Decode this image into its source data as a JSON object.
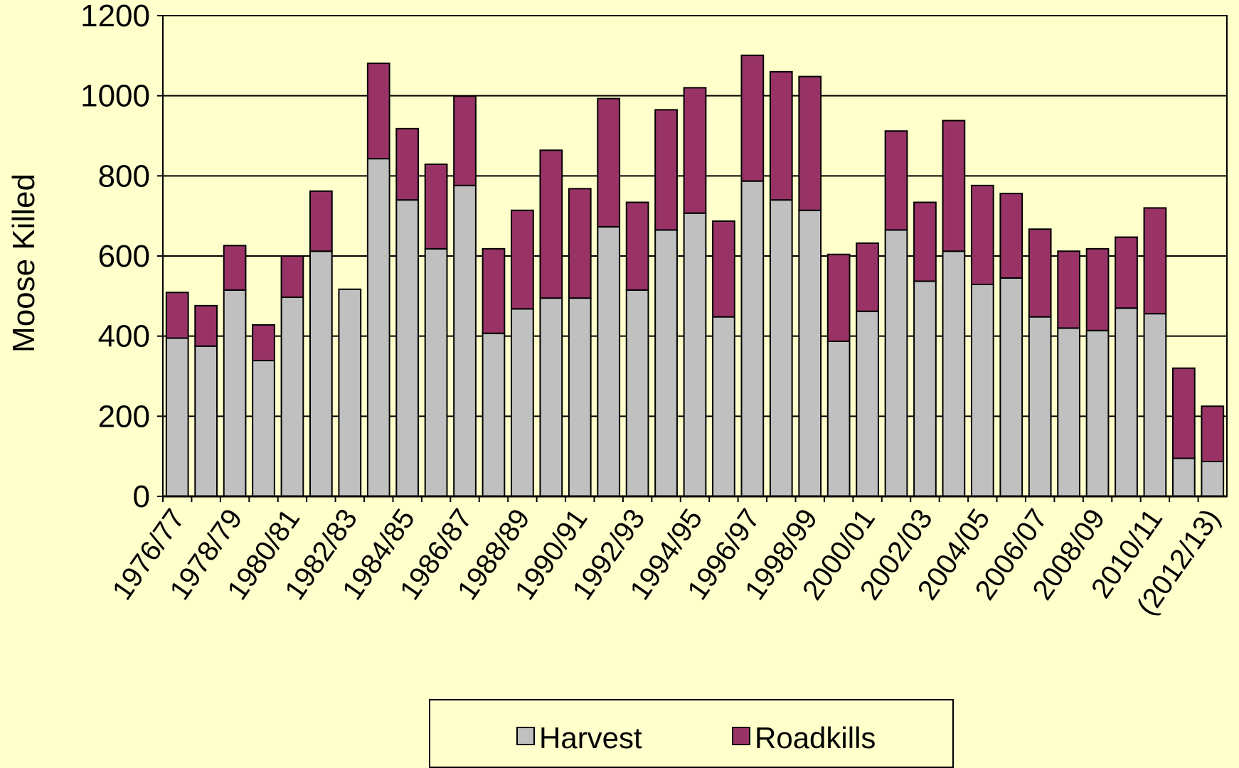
{
  "chart_data": {
    "type": "stacked_bar",
    "y_label": "Moose Killed",
    "categories": [
      "1976/77",
      null,
      "1978/79",
      null,
      "1980/81",
      null,
      "1982/83",
      null,
      "1984/85",
      null,
      "1986/87",
      null,
      "1988/89",
      null,
      "1990/91",
      null,
      "1992/93",
      null,
      "1994/95",
      null,
      "1996/97",
      null,
      "1998/99",
      null,
      "2000/01",
      null,
      "2002/03",
      null,
      "2004/05",
      null,
      "2006/07",
      null,
      "2008/09",
      null,
      "2010/11",
      null,
      "(2012/13)"
    ],
    "series": [
      {
        "name": "Harvest",
        "color": "#c0c0c0",
        "values": [
          395,
          375,
          515,
          339,
          497,
          612,
          517,
          843,
          740,
          618,
          776,
          407,
          468,
          495,
          495,
          673,
          515,
          665,
          707,
          448,
          787,
          740,
          714,
          387,
          462,
          665,
          537,
          612,
          529,
          545,
          448,
          420,
          414,
          470,
          456,
          95,
          87
        ]
      },
      {
        "name": "Roadkills",
        "color": "#993366",
        "values": [
          114,
          101,
          111,
          89,
          103,
          150,
          0,
          238,
          178,
          211,
          223,
          211,
          246,
          369,
          273,
          320,
          219,
          300,
          313,
          239,
          314,
          320,
          334,
          217,
          170,
          247,
          197,
          326,
          247,
          211,
          219,
          192,
          204,
          177,
          264,
          225,
          138
        ]
      }
    ],
    "ylim": [
      0,
      1200
    ],
    "yticks": [
      0,
      200,
      400,
      600,
      800,
      1000,
      1200
    ],
    "grid": true,
    "legend": "bottom"
  }
}
